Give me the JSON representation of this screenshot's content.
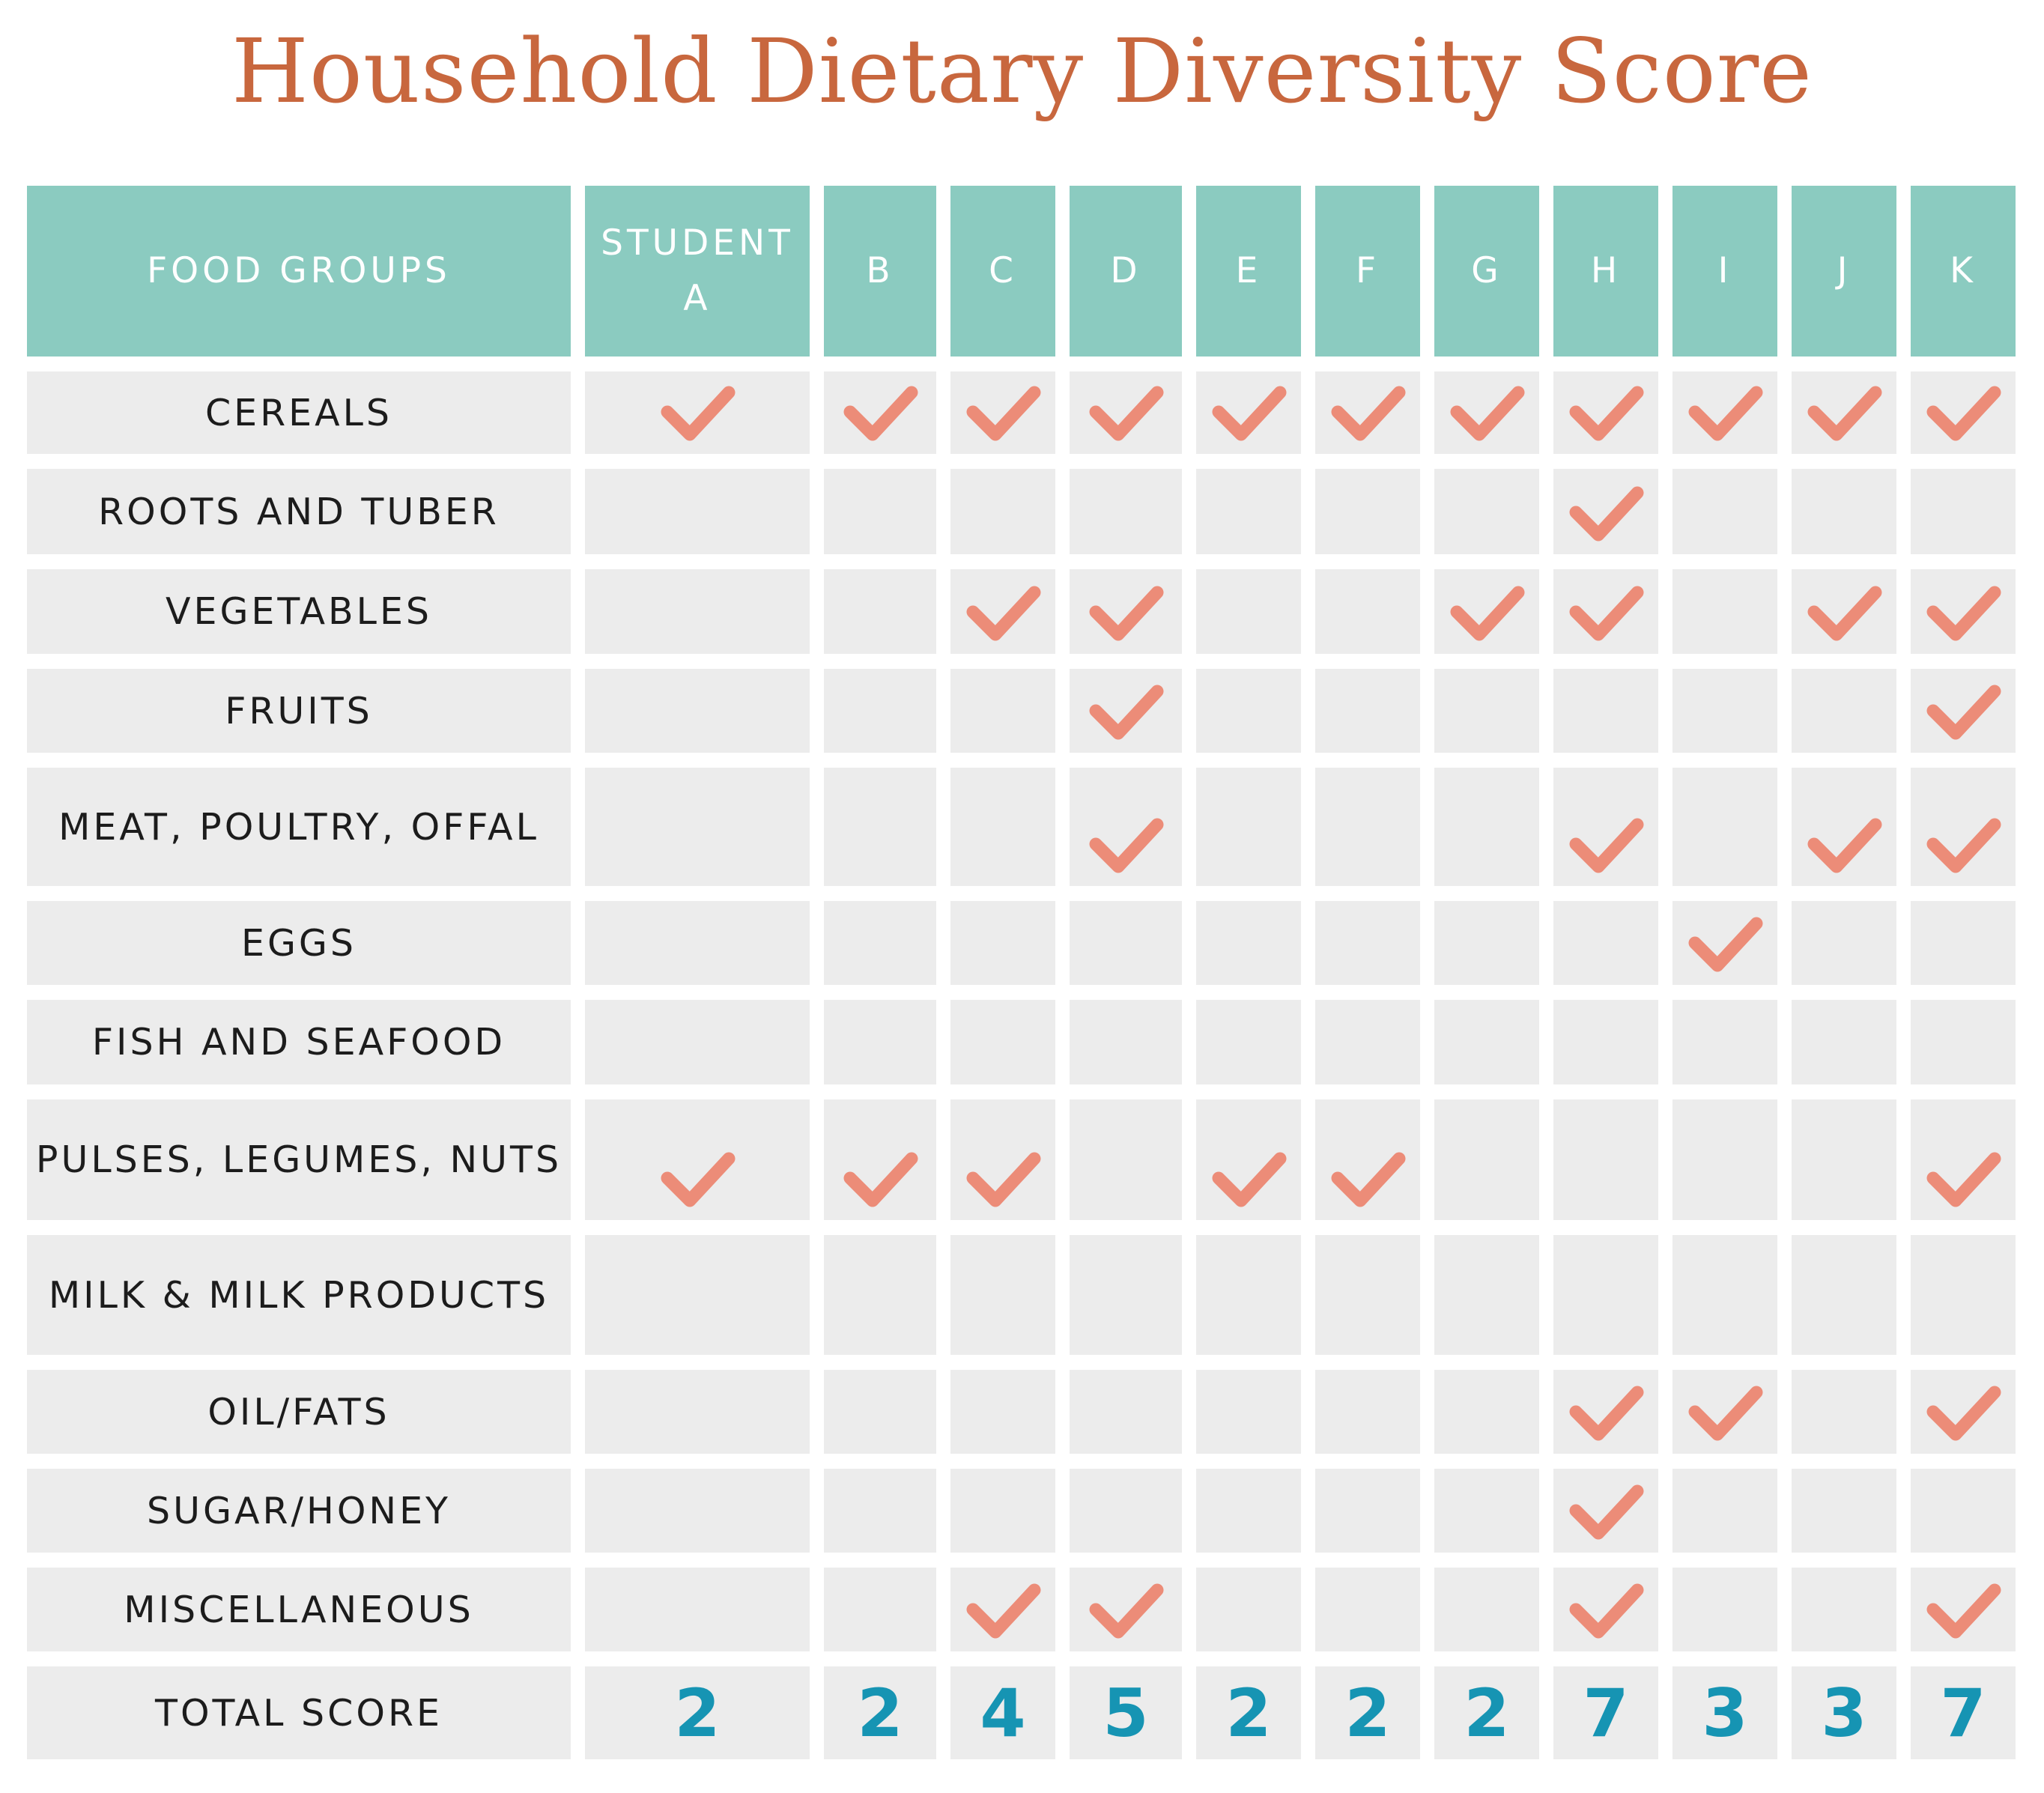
{
  "title": "Household Dietary Diversity Score",
  "headers": {
    "food_groups": "FOOD GROUPS",
    "columns": [
      "STUDENT A",
      "B",
      "C",
      "D",
      "E",
      "F",
      "G",
      "H",
      "I",
      "J",
      "K"
    ]
  },
  "rows": [
    {
      "label": "CEREALS",
      "checks": [
        true,
        true,
        true,
        true,
        true,
        true,
        true,
        true,
        true,
        true,
        true
      ]
    },
    {
      "label": "ROOTS AND TUBER",
      "checks": [
        false,
        false,
        false,
        false,
        false,
        false,
        false,
        true,
        false,
        false,
        false
      ]
    },
    {
      "label": "VEGETABLES",
      "checks": [
        false,
        false,
        true,
        true,
        false,
        false,
        true,
        true,
        false,
        true,
        true
      ]
    },
    {
      "label": "FRUITS",
      "checks": [
        false,
        false,
        false,
        true,
        false,
        false,
        false,
        false,
        false,
        false,
        true
      ]
    },
    {
      "label": "MEAT, POULTRY, OFFAL",
      "checks": [
        false,
        false,
        false,
        true,
        false,
        false,
        false,
        true,
        false,
        true,
        true
      ]
    },
    {
      "label": "EGGS",
      "checks": [
        false,
        false,
        false,
        false,
        false,
        false,
        false,
        false,
        true,
        false,
        false
      ]
    },
    {
      "label": "FISH AND SEAFOOD",
      "checks": [
        false,
        false,
        false,
        false,
        false,
        false,
        false,
        false,
        false,
        false,
        false
      ]
    },
    {
      "label": "PULSES, LEGUMES, NUTS",
      "checks": [
        true,
        true,
        true,
        false,
        true,
        true,
        false,
        false,
        false,
        false,
        true
      ]
    },
    {
      "label": "MILK & MILK PRODUCTS",
      "checks": [
        false,
        false,
        false,
        false,
        false,
        false,
        false,
        false,
        false,
        false,
        false
      ]
    },
    {
      "label": "OIL/FATS",
      "checks": [
        false,
        false,
        false,
        false,
        false,
        false,
        false,
        true,
        true,
        false,
        true
      ]
    },
    {
      "label": "SUGAR/HONEY",
      "checks": [
        false,
        false,
        false,
        false,
        false,
        false,
        false,
        true,
        false,
        false,
        false
      ]
    },
    {
      "label": "MISCELLANEOUS",
      "checks": [
        false,
        false,
        true,
        true,
        false,
        false,
        false,
        true,
        false,
        false,
        true
      ]
    }
  ],
  "total": {
    "label": "TOTAL SCORE",
    "scores": [
      "2",
      "2",
      "4",
      "5",
      "2",
      "2",
      "2",
      "7",
      "3",
      "3",
      "7"
    ]
  },
  "icon": "check-mark-icon",
  "colors": {
    "title": "#c8673e",
    "header_bg": "#8bcbc0",
    "cell_bg": "#ececec",
    "check": "#ec8c78",
    "score": "#1694b3"
  }
}
